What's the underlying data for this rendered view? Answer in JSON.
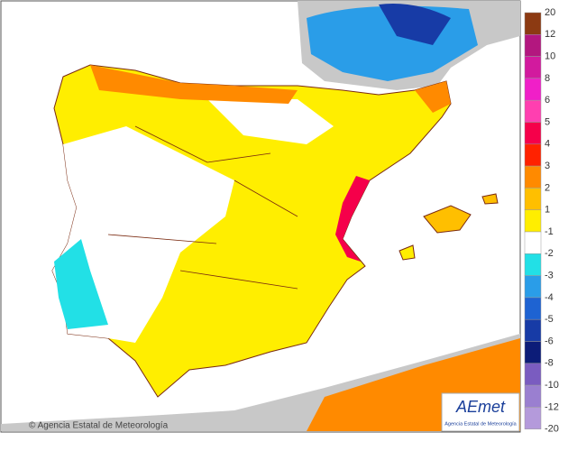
{
  "legend": {
    "items": [
      {
        "label": 20,
        "color": "#8c3a12"
      },
      {
        "label": 12,
        "color": "#b3177f"
      },
      {
        "label": 10,
        "color": "#d21a9e"
      },
      {
        "label": 8,
        "color": "#f01fc8"
      },
      {
        "label": 6,
        "color": "#ff3fb0"
      },
      {
        "label": 5,
        "color": "#f5004a"
      },
      {
        "label": 4,
        "color": "#ff2200"
      },
      {
        "label": 3,
        "color": "#ff8a00"
      },
      {
        "label": 2,
        "color": "#ffbf00"
      },
      {
        "label": 1,
        "color": "#ffee00"
      },
      {
        "label": -1,
        "color": "#ffffff"
      },
      {
        "label": -2,
        "color": "#22e0e6"
      },
      {
        "label": -3,
        "color": "#2a9de8"
      },
      {
        "label": -4,
        "color": "#1e63d2"
      },
      {
        "label": -5,
        "color": "#173ba6"
      },
      {
        "label": -6,
        "color": "#0c1c78"
      },
      {
        "label": -8,
        "color": "#7a5cc0"
      },
      {
        "label": -10,
        "color": "#9a7fd0"
      },
      {
        "label": -12,
        "color": "#b49adb"
      },
      {
        "label": -20,
        "color": "#8a4bb0"
      }
    ]
  },
  "footer": {
    "credit": "© Agencia Estatal de Meteorología"
  },
  "logo": {
    "name": "AEmet",
    "subtitle": "Agencia Estatal de Meteorología"
  }
}
